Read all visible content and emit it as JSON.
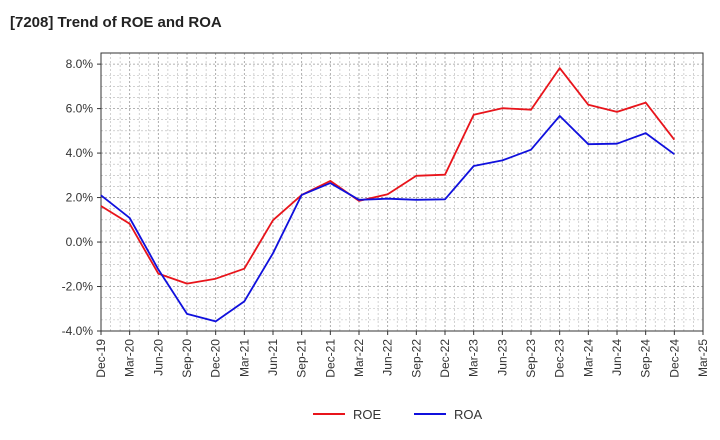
{
  "chart_data": {
    "type": "line",
    "title": "[7208]  Trend of ROE and ROA",
    "xlabel": "",
    "ylabel": "",
    "x": [
      "Dec-19",
      "Mar-20",
      "Jun-20",
      "Sep-20",
      "Dec-20",
      "Mar-21",
      "Jun-21",
      "Sep-21",
      "Dec-21",
      "Mar-22",
      "Jun-22",
      "Sep-22",
      "Dec-22",
      "Mar-23",
      "Jun-23",
      "Sep-23",
      "Dec-23",
      "Mar-24",
      "Jun-24",
      "Sep-24",
      "Dec-24",
      "Mar-25"
    ],
    "ylim": [
      -4.0,
      8.5
    ],
    "yticks": [
      -4.0,
      -2.0,
      0.0,
      2.0,
      4.0,
      6.0,
      8.0
    ],
    "ytick_labels": [
      "-4.0%",
      "-2.0%",
      "0.0%",
      "2.0%",
      "4.0%",
      "6.0%",
      "8.0%"
    ],
    "grid": true,
    "legend_position": "bottom",
    "series": [
      {
        "name": "ROE",
        "color": "#e8141b",
        "values": [
          1.62,
          0.82,
          -1.42,
          -1.87,
          -1.65,
          -1.2,
          0.98,
          2.12,
          2.75,
          1.85,
          2.15,
          2.98,
          3.03,
          5.72,
          6.02,
          5.95,
          7.82,
          6.17,
          5.85,
          6.27,
          4.6,
          null
        ]
      },
      {
        "name": "ROA",
        "color": "#1010dd",
        "values": [
          2.1,
          1.08,
          -1.23,
          -3.23,
          -3.57,
          -2.67,
          -0.5,
          2.12,
          2.65,
          1.9,
          1.95,
          1.9,
          1.92,
          3.42,
          3.67,
          4.15,
          5.67,
          4.4,
          4.42,
          4.9,
          3.95,
          null
        ]
      }
    ]
  }
}
